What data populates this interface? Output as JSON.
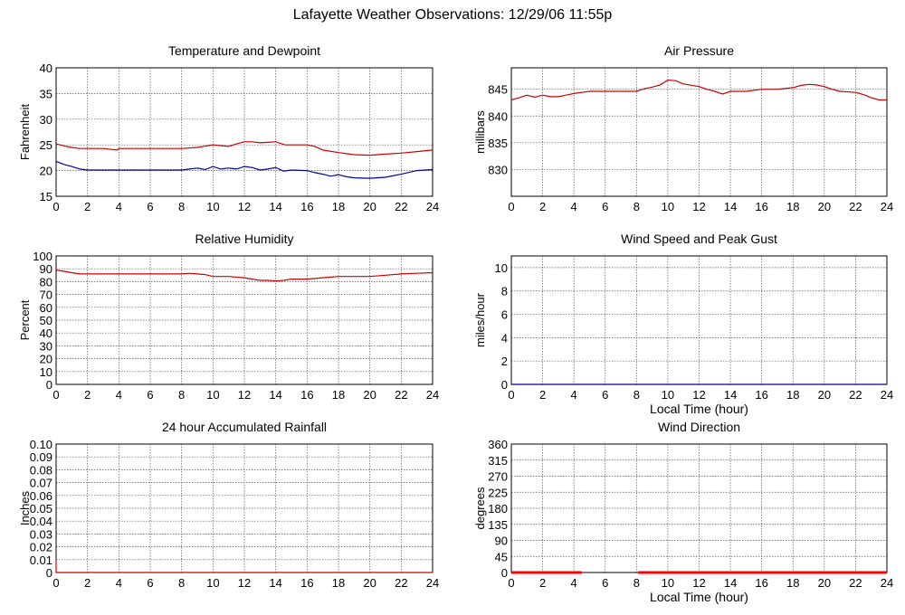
{
  "page": {
    "title": "Lafayette Weather Observations: 12/29/06 11:55p"
  },
  "chart_data": [
    {
      "id": "temperature",
      "type": "line",
      "title": "Temperature and Dewpoint",
      "xlabel": "",
      "ylabel": "Fahrenheit",
      "xlim": [
        0,
        24
      ],
      "ylim": [
        15,
        40
      ],
      "xticks": [
        0,
        2,
        4,
        6,
        8,
        10,
        12,
        14,
        16,
        18,
        20,
        22,
        24
      ],
      "yticks": [
        15,
        20,
        25,
        30,
        35,
        40
      ],
      "grid": true,
      "series": [
        {
          "color": "#cc0000",
          "x": [
            0,
            0.5,
            1,
            1.5,
            2,
            3,
            3.9,
            4,
            5,
            6,
            7,
            8,
            9,
            9.6,
            10,
            11,
            11.5,
            12,
            12.5,
            13,
            13.5,
            14,
            14.6,
            15,
            16,
            16.5,
            17,
            18,
            19,
            20,
            21,
            22,
            23,
            24
          ],
          "y": [
            25.2,
            24.8,
            24.5,
            24.3,
            24.3,
            24.3,
            24.0,
            24.3,
            24.3,
            24.3,
            24.3,
            24.3,
            24.5,
            24.8,
            25.0,
            24.7,
            25.2,
            25.6,
            25.6,
            25.4,
            25.5,
            25.6,
            25.0,
            25.0,
            25.0,
            24.7,
            24.0,
            23.5,
            23.1,
            23.0,
            23.2,
            23.4,
            23.7,
            24.0
          ]
        },
        {
          "color": "#000099",
          "x": [
            0,
            0.5,
            1,
            1.5,
            2,
            3,
            4,
            5,
            6,
            7,
            8,
            8.5,
            9,
            9.5,
            10,
            10.5,
            11,
            11.5,
            12,
            12.5,
            13,
            13.5,
            14,
            14.5,
            15,
            16,
            16.5,
            17,
            17.5,
            18,
            18.5,
            19,
            20,
            21,
            22,
            23,
            24
          ],
          "y": [
            21.8,
            21.2,
            20.8,
            20.3,
            20.1,
            20.1,
            20.1,
            20.1,
            20.1,
            20.1,
            20.1,
            20.3,
            20.5,
            20.2,
            20.8,
            20.3,
            20.5,
            20.3,
            20.8,
            20.6,
            20.1,
            20.3,
            20.6,
            19.9,
            20.1,
            20.0,
            19.6,
            19.3,
            18.9,
            19.2,
            18.8,
            18.6,
            18.5,
            18.7,
            19.3,
            20.0,
            20.2
          ]
        }
      ]
    },
    {
      "id": "pressure",
      "type": "line",
      "title": "Air Pressure",
      "xlabel": "",
      "ylabel": "millibars",
      "xlim": [
        0,
        24
      ],
      "ylim": [
        825,
        849
      ],
      "xticks": [
        0,
        2,
        4,
        6,
        8,
        10,
        12,
        14,
        16,
        18,
        20,
        22,
        24
      ],
      "yticks": [
        830,
        835,
        840,
        845
      ],
      "grid": true,
      "series": [
        {
          "color": "#cc0000",
          "x": [
            0,
            0.5,
            1,
            1.5,
            2,
            2.5,
            3,
            3.5,
            4,
            4.5,
            5,
            6,
            7,
            8,
            8.5,
            9,
            9.5,
            10,
            10.5,
            11,
            12,
            12.5,
            13,
            13.5,
            14,
            15,
            16,
            17,
            18,
            18.5,
            19,
            19.5,
            20,
            20.5,
            21,
            22,
            22.5,
            23,
            23.5,
            24
          ],
          "y": [
            843.0,
            843.4,
            843.9,
            843.5,
            843.9,
            843.6,
            843.6,
            843.9,
            844.2,
            844.4,
            844.6,
            844.6,
            844.6,
            844.6,
            845.1,
            845.4,
            845.8,
            846.7,
            846.6,
            846.0,
            845.5,
            845.0,
            844.6,
            844.1,
            844.6,
            844.6,
            845.0,
            845.0,
            845.3,
            845.7,
            845.9,
            845.8,
            845.5,
            845.0,
            844.6,
            844.4,
            844.0,
            843.4,
            843.0,
            843.0
          ]
        }
      ]
    },
    {
      "id": "humidity",
      "type": "line",
      "title": "Relative Humidity",
      "xlabel": "",
      "ylabel": "Percent",
      "xlim": [
        0,
        24
      ],
      "ylim": [
        0,
        100
      ],
      "xticks": [
        0,
        2,
        4,
        6,
        8,
        10,
        12,
        14,
        16,
        18,
        20,
        22,
        24
      ],
      "yticks": [
        0,
        10,
        20,
        30,
        40,
        50,
        60,
        70,
        80,
        90,
        100
      ],
      "grid": true,
      "series": [
        {
          "color": "#cc0000",
          "x": [
            0,
            0.5,
            1,
            1.5,
            2,
            3,
            4,
            5,
            6,
            7,
            8,
            8.5,
            9,
            9.5,
            10,
            11,
            12,
            12.5,
            13,
            13.5,
            14,
            14.5,
            15,
            16,
            17,
            18,
            19,
            20,
            21,
            22,
            23,
            24
          ],
          "y": [
            89,
            88,
            87,
            86,
            86,
            86,
            86,
            86,
            86,
            86,
            86,
            86.5,
            86,
            85.5,
            84,
            84,
            83,
            82,
            81,
            81,
            80.5,
            81,
            82,
            82,
            83,
            84,
            84,
            84,
            85,
            86,
            86.5,
            87
          ]
        }
      ]
    },
    {
      "id": "wind-speed",
      "type": "line",
      "title": "Wind Speed and Peak Gust",
      "xlabel": "Local Time (hour)",
      "ylabel": "miles/hour",
      "xlim": [
        0,
        24
      ],
      "ylim": [
        0,
        11
      ],
      "xticks": [
        0,
        2,
        4,
        6,
        8,
        10,
        12,
        14,
        16,
        18,
        20,
        22,
        24
      ],
      "yticks": [
        0,
        2,
        4,
        6,
        8,
        10
      ],
      "grid": true,
      "series": [
        {
          "color": "#000099",
          "x": [
            0,
            24
          ],
          "y": [
            0,
            0
          ]
        }
      ]
    },
    {
      "id": "rainfall",
      "type": "line",
      "title": "24 hour Accumulated Rainfall",
      "xlabel": "",
      "ylabel": "Inches",
      "xlim": [
        0,
        24
      ],
      "ylim": [
        0,
        0.1
      ],
      "xticks": [
        0,
        2,
        4,
        6,
        8,
        10,
        12,
        14,
        16,
        18,
        20,
        22,
        24
      ],
      "yticks": [
        0,
        0.01,
        0.02,
        0.03,
        0.04,
        0.05,
        0.06,
        0.07,
        0.08,
        0.09,
        0.1
      ],
      "ytickLabels": [
        "0",
        "0.01",
        "0.02",
        "0.03",
        "0.04",
        "0.05",
        "0.06",
        "0.07",
        "0.08",
        "0.09",
        "0.10"
      ],
      "grid": true,
      "series": [
        {
          "color": "#cc0000",
          "x": [
            0,
            0,
            0.05,
            24
          ],
          "y": [
            0.01,
            0,
            0,
            0
          ]
        }
      ]
    },
    {
      "id": "wind-direction",
      "type": "line",
      "title": "Wind Direction",
      "xlabel": "Local Time (hour)",
      "ylabel": "degrees",
      "xlim": [
        0,
        24
      ],
      "ylim": [
        0,
        360
      ],
      "xticks": [
        0,
        2,
        4,
        6,
        8,
        10,
        12,
        14,
        16,
        18,
        20,
        22,
        24
      ],
      "yticks": [
        0,
        45,
        90,
        135,
        180,
        225,
        270,
        315,
        360
      ],
      "grid": true,
      "series": [
        {
          "color": "#ff0000",
          "thick": true,
          "x": [
            0,
            4.5
          ],
          "y": [
            0,
            0
          ]
        },
        {
          "color": "#ff0000",
          "thick": true,
          "x": [
            8.1,
            24
          ],
          "y": [
            0,
            0
          ]
        }
      ]
    }
  ]
}
